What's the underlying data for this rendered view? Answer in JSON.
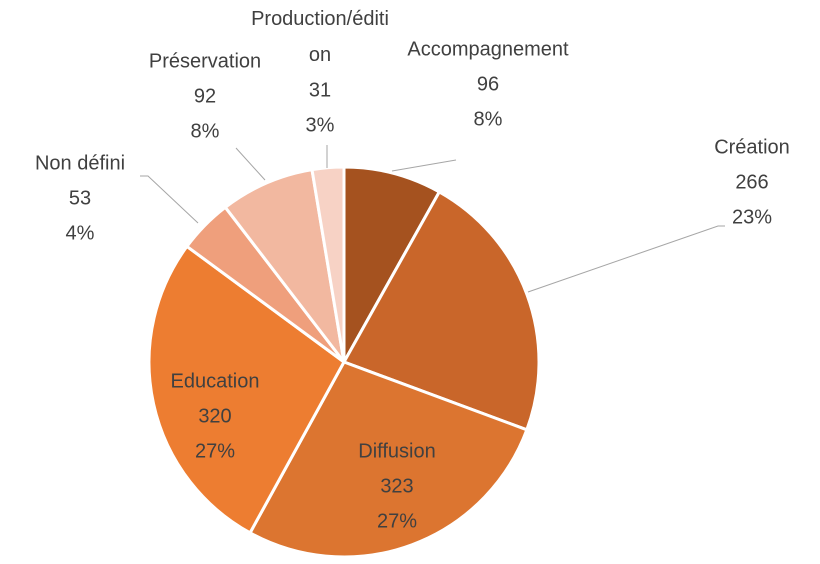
{
  "chart_data": {
    "type": "pie",
    "categories": [
      "Accompagnement",
      "Création",
      "Diffusion",
      "Education",
      "Non défini",
      "Préservation",
      "Production/édition"
    ],
    "values": [
      96,
      266,
      323,
      320,
      53,
      92,
      31
    ],
    "percent_labels": [
      "8%",
      "23%",
      "27%",
      "27%",
      "4%",
      "8%",
      "3%"
    ],
    "colors": [
      "#a5521f",
      "#c9662a",
      "#dc7530",
      "#ed7d31",
      "#ef9f7c",
      "#f2b8a0",
      "#f7d2c5"
    ]
  }
}
